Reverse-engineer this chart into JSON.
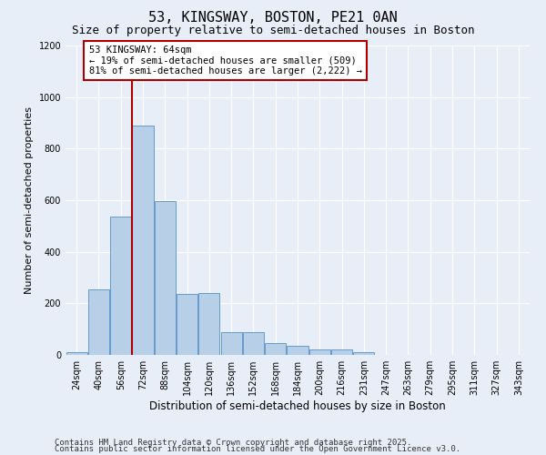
{
  "title": "53, KINGSWAY, BOSTON, PE21 0AN",
  "subtitle": "Size of property relative to semi-detached houses in Boston",
  "xlabel": "Distribution of semi-detached houses by size in Boston",
  "ylabel": "Number of semi-detached properties",
  "categories": [
    "24sqm",
    "40sqm",
    "56sqm",
    "72sqm",
    "88sqm",
    "104sqm",
    "120sqm",
    "136sqm",
    "152sqm",
    "168sqm",
    "184sqm",
    "200sqm",
    "216sqm",
    "231sqm",
    "247sqm",
    "263sqm",
    "279sqm",
    "295sqm",
    "311sqm",
    "327sqm",
    "343sqm"
  ],
  "values": [
    10,
    255,
    535,
    890,
    595,
    235,
    240,
    90,
    90,
    45,
    35,
    20,
    20,
    10,
    0,
    0,
    0,
    0,
    0,
    0,
    0
  ],
  "bar_color": "#b8cfe8",
  "bar_edge_color": "#6699cc",
  "vline_x": 2.5,
  "vline_color": "#aa0000",
  "annotation_text": "53 KINGSWAY: 64sqm\n← 19% of semi-detached houses are smaller (509)\n81% of semi-detached houses are larger (2,222) →",
  "annotation_box_color": "#ffffff",
  "annotation_box_edge": "#aa0000",
  "ylim": [
    0,
    1200
  ],
  "yticks": [
    0,
    200,
    400,
    600,
    800,
    1000,
    1200
  ],
  "footer_line1": "Contains HM Land Registry data © Crown copyright and database right 2025.",
  "footer_line2": "Contains public sector information licensed under the Open Government Licence v3.0.",
  "bg_color": "#e8eef8",
  "grid_color": "#ffffff",
  "title_fontsize": 11,
  "subtitle_fontsize": 9,
  "xlabel_fontsize": 8.5,
  "ylabel_fontsize": 8,
  "tick_fontsize": 7,
  "annot_fontsize": 7.5,
  "footer_fontsize": 6.5
}
